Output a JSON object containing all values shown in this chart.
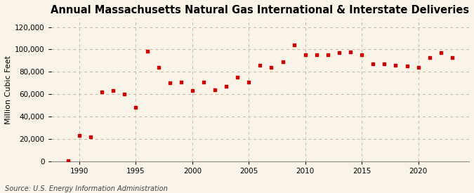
{
  "title": "Annual Massachusetts Natural Gas International & Interstate Deliveries",
  "ylabel": "Million Cubic Feet",
  "source": "Source: U.S. Energy Information Administration",
  "background_color": "#faf3e8",
  "marker_color": "#cc0000",
  "grid_color": "#c8b8a0",
  "years": [
    1989,
    1990,
    1991,
    1992,
    1993,
    1994,
    1995,
    1996,
    1997,
    1998,
    1999,
    2000,
    2001,
    2002,
    2003,
    2004,
    2005,
    2006,
    2007,
    2008,
    2009,
    2010,
    2011,
    2012,
    2013,
    2014,
    2015,
    2016,
    2017,
    2018,
    2019,
    2020,
    2021,
    2022,
    2023
  ],
  "values": [
    500,
    23000,
    22000,
    62000,
    63000,
    60000,
    48000,
    98500,
    84000,
    70000,
    71000,
    63000,
    71000,
    64000,
    67000,
    75000,
    71000,
    86000,
    84000,
    89000,
    104000,
    95000,
    95000,
    95000,
    97000,
    98000,
    95000,
    87000,
    87000,
    86000,
    85000,
    84000,
    93000,
    97000,
    93000
  ],
  "xlim": [
    1987.5,
    2024.5
  ],
  "ylim": [
    0,
    128000
  ],
  "yticks": [
    0,
    20000,
    40000,
    60000,
    80000,
    100000,
    120000
  ],
  "xticks": [
    1990,
    1995,
    2000,
    2005,
    2010,
    2015,
    2020
  ],
  "title_fontsize": 10.5,
  "label_fontsize": 8,
  "tick_fontsize": 7.5,
  "source_fontsize": 7
}
